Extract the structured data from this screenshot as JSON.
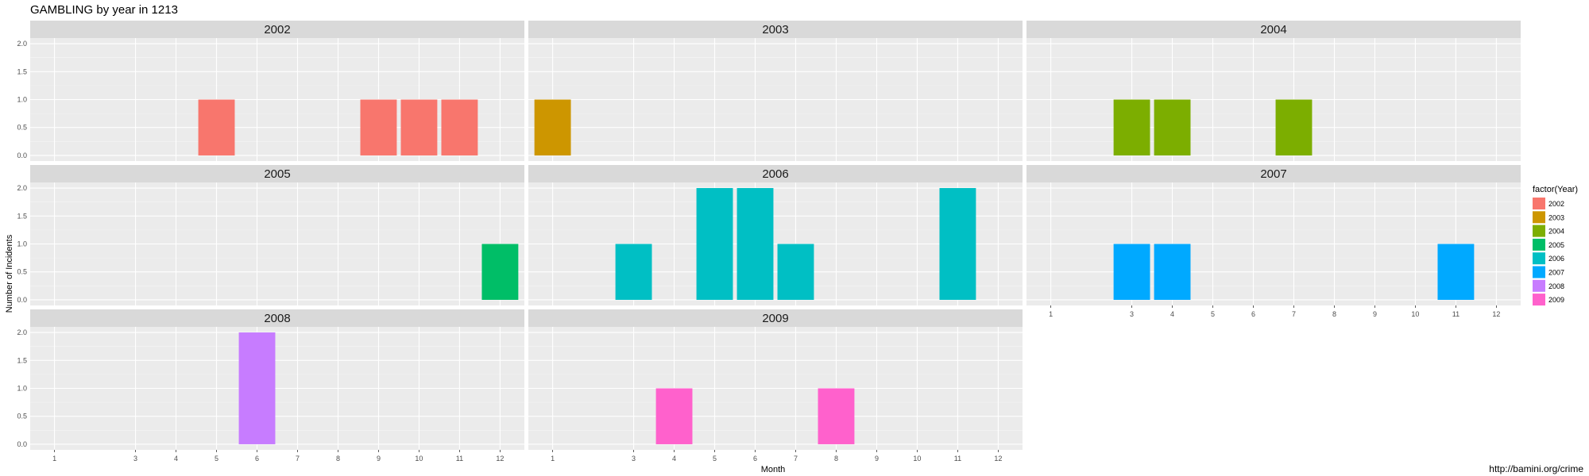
{
  "chart_data": {
    "type": "bar",
    "title": "GAMBLING by year in 1213",
    "xlabel": "Month",
    "ylabel": "Number of Incidents",
    "caption": "http://bamini.org/crime",
    "x_ticks": [
      1,
      3,
      4,
      5,
      6,
      7,
      8,
      9,
      10,
      11,
      12
    ],
    "ylim": [
      0,
      2
    ],
    "y_ticks": [
      "0.0",
      "0.5",
      "1.0",
      "1.5",
      "2.0"
    ],
    "grid": true,
    "legend": {
      "title": "factor(Year)",
      "placement": "right",
      "entries": [
        {
          "label": "2002",
          "color": "#F8766D"
        },
        {
          "label": "2003",
          "color": "#CD9600"
        },
        {
          "label": "2004",
          "color": "#7CAE00"
        },
        {
          "label": "2005",
          "color": "#00BE67"
        },
        {
          "label": "2006",
          "color": "#00BFC4"
        },
        {
          "label": "2007",
          "color": "#00A9FF"
        },
        {
          "label": "2008",
          "color": "#C77CFF"
        },
        {
          "label": "2009",
          "color": "#FF61CC"
        }
      ]
    },
    "panels": [
      {
        "year": "2002",
        "color": "#F8766D",
        "bars": [
          {
            "month": 5,
            "value": 1
          },
          {
            "month": 9,
            "value": 1
          },
          {
            "month": 10,
            "value": 1
          },
          {
            "month": 11,
            "value": 1
          }
        ]
      },
      {
        "year": "2003",
        "color": "#CD9600",
        "bars": [
          {
            "month": 1,
            "value": 1
          }
        ]
      },
      {
        "year": "2004",
        "color": "#7CAE00",
        "bars": [
          {
            "month": 3,
            "value": 1
          },
          {
            "month": 4,
            "value": 1
          },
          {
            "month": 7,
            "value": 1
          }
        ]
      },
      {
        "year": "2005",
        "color": "#00BE67",
        "bars": [
          {
            "month": 12,
            "value": 1
          }
        ]
      },
      {
        "year": "2006",
        "color": "#00BFC4",
        "bars": [
          {
            "month": 3,
            "value": 1
          },
          {
            "month": 5,
            "value": 2
          },
          {
            "month": 6,
            "value": 2
          },
          {
            "month": 7,
            "value": 1
          },
          {
            "month": 11,
            "value": 2
          }
        ]
      },
      {
        "year": "2007",
        "color": "#00A9FF",
        "bars": [
          {
            "month": 3,
            "value": 1
          },
          {
            "month": 4,
            "value": 1
          },
          {
            "month": 11,
            "value": 1
          }
        ]
      },
      {
        "year": "2008",
        "color": "#C77CFF",
        "bars": [
          {
            "month": 6,
            "value": 2
          }
        ]
      },
      {
        "year": "2009",
        "color": "#FF61CC",
        "bars": [
          {
            "month": 4,
            "value": 1
          },
          {
            "month": 8,
            "value": 1
          }
        ]
      }
    ]
  }
}
